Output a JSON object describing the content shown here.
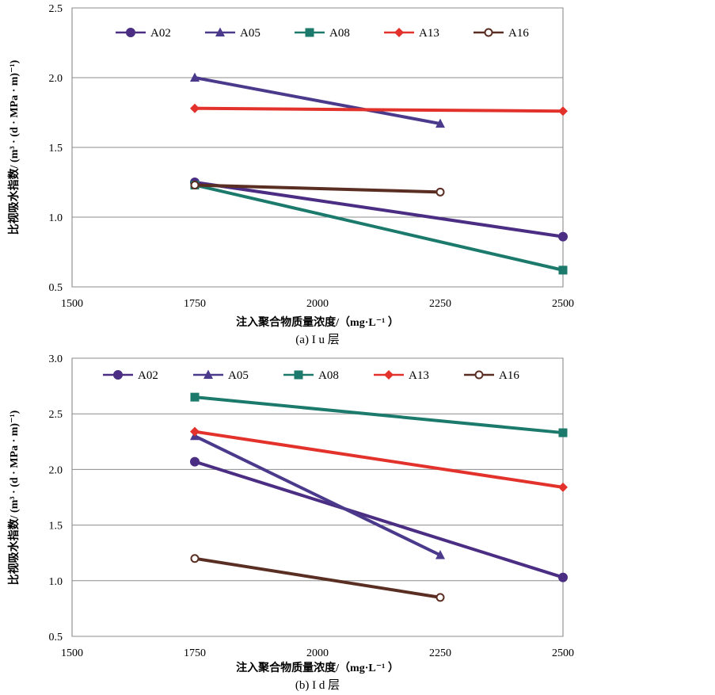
{
  "chart_data": [
    {
      "type": "line",
      "caption": "(a) I u 层",
      "xlabel": "注入聚合物质量浓度/（mg·L⁻¹ ）",
      "ylabel": "比视吸水指数/ (m³ · (d · MPa · m)⁻¹)",
      "xlim": [
        1500,
        2500
      ],
      "ylim": [
        0.5,
        2.5
      ],
      "xticks": [
        "1500",
        "1750",
        "2000",
        "2250",
        "2500"
      ],
      "yticks": [
        "0.5",
        "1.0",
        "1.5",
        "2.0",
        "2.5"
      ],
      "grid": true,
      "legend": "top",
      "series": [
        {
          "name": "A02",
          "color": "#4b2e83",
          "marker": "circle",
          "x": [
            1750,
            2500
          ],
          "y": [
            1.25,
            0.86
          ]
        },
        {
          "name": "A05",
          "color": "#4b3a8c",
          "marker": "triangle",
          "x": [
            1750,
            2250
          ],
          "y": [
            2.0,
            1.67
          ]
        },
        {
          "name": "A08",
          "color": "#1b7a6b",
          "marker": "square",
          "x": [
            1750,
            2500
          ],
          "y": [
            1.23,
            0.62
          ]
        },
        {
          "name": "A13",
          "color": "#e2322b",
          "marker": "diamond",
          "x": [
            1750,
            2500
          ],
          "y": [
            1.78,
            1.76
          ]
        },
        {
          "name": "A16",
          "color": "#5a2e22",
          "marker": "open-circle",
          "x": [
            1750,
            2250
          ],
          "y": [
            1.23,
            1.18
          ]
        }
      ]
    },
    {
      "type": "line",
      "caption": "(b) I d 层",
      "xlabel": "注入聚合物质量浓度/（mg·L⁻¹ ）",
      "ylabel": "比视吸水指数/ (m³ · (d · MPa · m)⁻¹)",
      "xlim": [
        1500,
        2500
      ],
      "ylim": [
        0.5,
        3.0
      ],
      "xticks": [
        "1500",
        "1750",
        "2000",
        "2250",
        "2500"
      ],
      "yticks": [
        "0.5",
        "1.0",
        "1.5",
        "2.0",
        "2.5",
        "3.0"
      ],
      "grid": true,
      "legend": "top",
      "series": [
        {
          "name": "A02",
          "color": "#4b2e83",
          "marker": "circle",
          "x": [
            1750,
            2500
          ],
          "y": [
            2.07,
            1.03
          ]
        },
        {
          "name": "A05",
          "color": "#4b3a8c",
          "marker": "triangle",
          "x": [
            1750,
            2250
          ],
          "y": [
            2.3,
            1.23
          ]
        },
        {
          "name": "A08",
          "color": "#1b7a6b",
          "marker": "square",
          "x": [
            1750,
            2500
          ],
          "y": [
            2.65,
            2.33
          ]
        },
        {
          "name": "A13",
          "color": "#e2322b",
          "marker": "diamond",
          "x": [
            1750,
            2500
          ],
          "y": [
            2.34,
            1.84
          ]
        },
        {
          "name": "A16",
          "color": "#5a2e22",
          "marker": "open-circle",
          "x": [
            1750,
            2250
          ],
          "y": [
            1.2,
            0.85
          ]
        }
      ]
    }
  ]
}
